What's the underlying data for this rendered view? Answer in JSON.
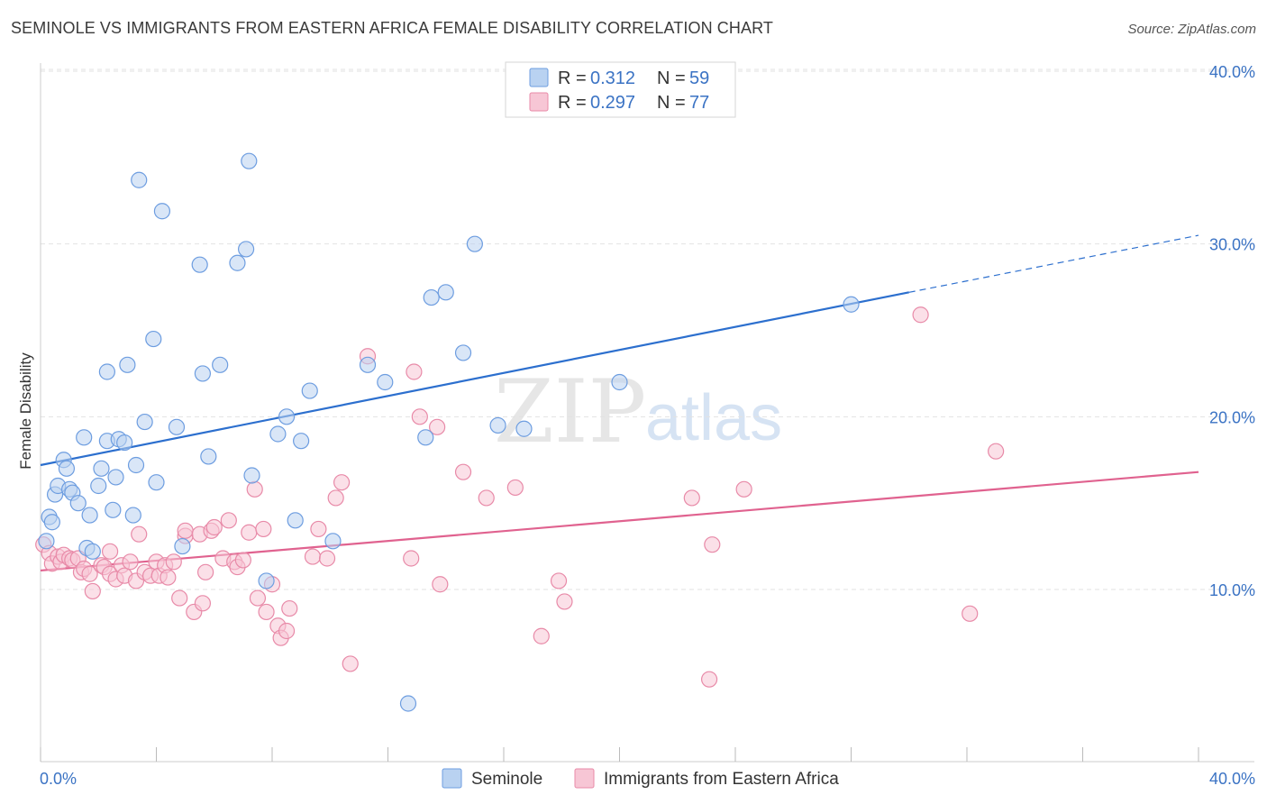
{
  "header": {
    "title": "SEMINOLE VS IMMIGRANTS FROM EASTERN AFRICA FEMALE DISABILITY CORRELATION CHART",
    "source": "Source: ZipAtlas.com"
  },
  "watermark": {
    "zip": "ZIP",
    "atlas": "atlas"
  },
  "colors": {
    "seminole_fill": "#b9d2f1",
    "seminole_stroke": "#6d9de0",
    "seminole_line": "#2c6fce",
    "immigrants_fill": "#f7c6d5",
    "immigrants_stroke": "#e88aa8",
    "immigrants_line": "#e0628f",
    "tick_label": "#3b73c4",
    "grid": "#e2e2e2"
  },
  "legend": {
    "rows": [
      {
        "r_label": "R =",
        "r_value": "0.312",
        "n_label": "N =",
        "n_value": "59"
      },
      {
        "r_label": "R =",
        "r_value": "0.297",
        "n_label": "N =",
        "n_value": "77"
      }
    ]
  },
  "bottom_legend": {
    "items": [
      "Seminole",
      "Immigrants from Eastern Africa"
    ]
  },
  "chart_data": {
    "type": "scatter",
    "title": "SEMINOLE VS IMMIGRANTS FROM EASTERN AFRICA FEMALE DISABILITY CORRELATION CHART",
    "xlabel": "",
    "ylabel": "Female Disability",
    "xlim": [
      0,
      40
    ],
    "ylim": [
      0,
      41
    ],
    "x_tick_labels": [
      "0.0%",
      "40.0%"
    ],
    "y_ticks": [
      10,
      20,
      30,
      40
    ],
    "y_tick_labels": [
      "10.0%",
      "20.0%",
      "30.0%",
      "40.0%"
    ],
    "grid": true,
    "legend_position": "top-center",
    "series": [
      {
        "name": "Seminole",
        "r": 0.312,
        "n": 59,
        "trend": {
          "x0": 0,
          "y0": 17.2,
          "x1": 30,
          "y1": 27.2,
          "dash_to_x": 40,
          "dash_to_y": 30.5
        },
        "points": [
          [
            0.3,
            14.2
          ],
          [
            0.4,
            13.9
          ],
          [
            0.5,
            15.5
          ],
          [
            0.6,
            16.0
          ],
          [
            0.8,
            17.5
          ],
          [
            0.9,
            17.0
          ],
          [
            1.0,
            15.8
          ],
          [
            1.1,
            15.6
          ],
          [
            1.3,
            15.0
          ],
          [
            1.5,
            18.8
          ],
          [
            1.6,
            12.4
          ],
          [
            1.7,
            14.3
          ],
          [
            1.8,
            12.2
          ],
          [
            2.0,
            16.0
          ],
          [
            2.1,
            17.0
          ],
          [
            2.3,
            22.6
          ],
          [
            2.3,
            18.6
          ],
          [
            2.5,
            14.6
          ],
          [
            2.6,
            16.5
          ],
          [
            2.7,
            18.7
          ],
          [
            2.9,
            18.5
          ],
          [
            3.0,
            23.0
          ],
          [
            3.2,
            14.3
          ],
          [
            3.3,
            17.2
          ],
          [
            3.4,
            33.7
          ],
          [
            3.6,
            19.7
          ],
          [
            3.9,
            24.5
          ],
          [
            4.0,
            16.2
          ],
          [
            4.2,
            31.9
          ],
          [
            4.7,
            19.4
          ],
          [
            4.9,
            12.5
          ],
          [
            5.6,
            22.5
          ],
          [
            5.5,
            28.8
          ],
          [
            5.8,
            17.7
          ],
          [
            6.2,
            23.0
          ],
          [
            6.8,
            28.9
          ],
          [
            7.1,
            29.7
          ],
          [
            7.2,
            34.8
          ],
          [
            7.3,
            16.6
          ],
          [
            7.8,
            10.5
          ],
          [
            8.2,
            19.0
          ],
          [
            8.5,
            20.0
          ],
          [
            8.8,
            14.0
          ],
          [
            9.0,
            18.6
          ],
          [
            9.3,
            21.5
          ],
          [
            10.1,
            12.8
          ],
          [
            11.3,
            23.0
          ],
          [
            11.9,
            22.0
          ],
          [
            12.7,
            3.4
          ],
          [
            13.3,
            18.8
          ],
          [
            13.5,
            26.9
          ],
          [
            14.0,
            27.2
          ],
          [
            14.6,
            23.7
          ],
          [
            15.0,
            30.0
          ],
          [
            15.8,
            19.5
          ],
          [
            16.7,
            19.3
          ],
          [
            20.0,
            22.0
          ],
          [
            28.0,
            26.5
          ],
          [
            0.2,
            12.8
          ]
        ]
      },
      {
        "name": "Immigrants from Eastern Africa",
        "r": 0.297,
        "n": 77,
        "trend": {
          "x0": 0,
          "y0": 11.1,
          "x1": 40,
          "y1": 16.8
        },
        "points": [
          [
            0.1,
            12.6
          ],
          [
            0.3,
            12.1
          ],
          [
            0.4,
            11.5
          ],
          [
            0.6,
            11.9
          ],
          [
            0.7,
            11.6
          ],
          [
            0.8,
            12.0
          ],
          [
            1.0,
            11.8
          ],
          [
            1.1,
            11.7
          ],
          [
            1.3,
            11.8
          ],
          [
            1.4,
            11.0
          ],
          [
            1.5,
            11.2
          ],
          [
            1.7,
            10.9
          ],
          [
            1.8,
            9.9
          ],
          [
            2.1,
            11.4
          ],
          [
            2.2,
            11.3
          ],
          [
            2.4,
            10.9
          ],
          [
            2.4,
            12.2
          ],
          [
            2.6,
            10.6
          ],
          [
            2.8,
            11.4
          ],
          [
            2.9,
            10.8
          ],
          [
            3.1,
            11.6
          ],
          [
            3.3,
            10.5
          ],
          [
            3.4,
            13.2
          ],
          [
            3.6,
            11.0
          ],
          [
            3.8,
            10.8
          ],
          [
            4.0,
            11.6
          ],
          [
            4.1,
            10.8
          ],
          [
            4.3,
            11.4
          ],
          [
            4.4,
            10.7
          ],
          [
            4.6,
            11.6
          ],
          [
            4.8,
            9.5
          ],
          [
            5.0,
            13.1
          ],
          [
            5.0,
            13.4
          ],
          [
            5.3,
            8.7
          ],
          [
            5.5,
            13.2
          ],
          [
            5.6,
            9.2
          ],
          [
            5.7,
            11.0
          ],
          [
            5.9,
            13.4
          ],
          [
            6.0,
            13.6
          ],
          [
            6.3,
            11.8
          ],
          [
            6.5,
            14.0
          ],
          [
            6.7,
            11.6
          ],
          [
            6.8,
            11.3
          ],
          [
            7.0,
            11.7
          ],
          [
            7.2,
            13.3
          ],
          [
            7.4,
            15.8
          ],
          [
            7.5,
            9.5
          ],
          [
            7.7,
            13.5
          ],
          [
            7.8,
            8.7
          ],
          [
            8.0,
            10.3
          ],
          [
            8.2,
            7.9
          ],
          [
            8.3,
            7.2
          ],
          [
            8.5,
            7.6
          ],
          [
            8.6,
            8.9
          ],
          [
            9.4,
            11.9
          ],
          [
            9.6,
            13.5
          ],
          [
            9.9,
            11.8
          ],
          [
            10.2,
            15.3
          ],
          [
            10.4,
            16.2
          ],
          [
            10.7,
            5.7
          ],
          [
            11.3,
            23.5
          ],
          [
            12.8,
            11.8
          ],
          [
            12.9,
            22.6
          ],
          [
            13.1,
            20.0
          ],
          [
            13.7,
            19.4
          ],
          [
            13.8,
            10.3
          ],
          [
            14.6,
            16.8
          ],
          [
            15.4,
            15.3
          ],
          [
            16.4,
            15.9
          ],
          [
            17.3,
            7.3
          ],
          [
            17.9,
            10.5
          ],
          [
            18.1,
            9.3
          ],
          [
            22.5,
            15.3
          ],
          [
            23.1,
            4.8
          ],
          [
            23.2,
            12.6
          ],
          [
            24.3,
            15.8
          ],
          [
            30.4,
            25.9
          ],
          [
            32.1,
            8.6
          ],
          [
            33.0,
            18.0
          ]
        ]
      }
    ]
  }
}
